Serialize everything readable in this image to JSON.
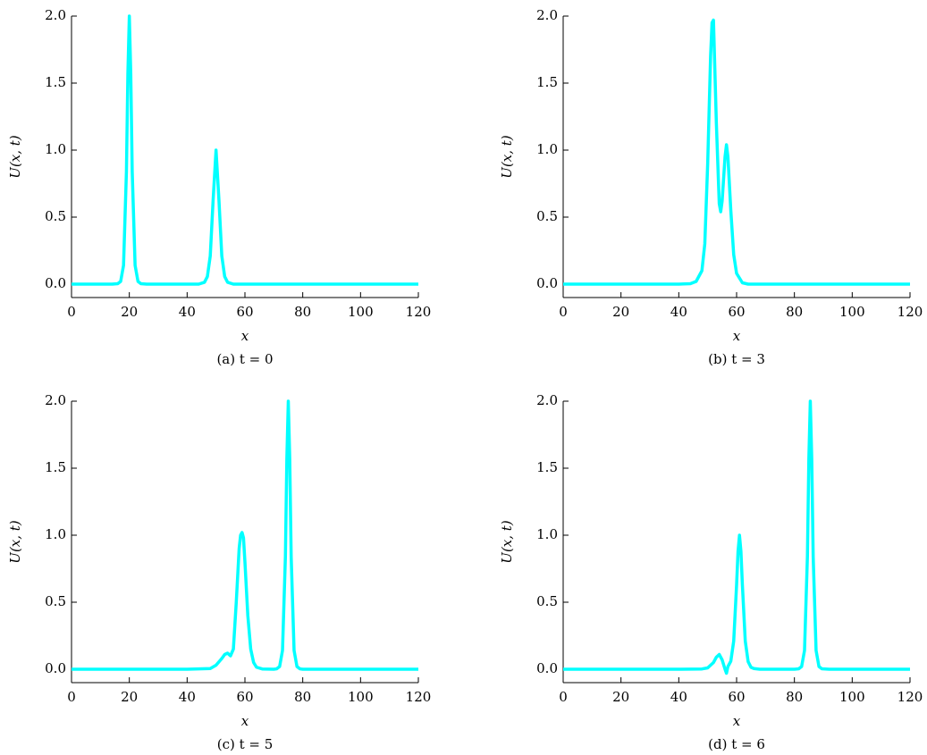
{
  "chart_data": [
    {
      "type": "line",
      "caption": "(a) t = 0",
      "xlabel": "x",
      "ylabel": "U(x, t)",
      "color": "#00ffff",
      "x": [
        0,
        10,
        14,
        16,
        17,
        18,
        19,
        19.5,
        20,
        20.5,
        21,
        22,
        23,
        24,
        26,
        30,
        40,
        44,
        46,
        47,
        48,
        49,
        50,
        51,
        52,
        53,
        54,
        56,
        60,
        80,
        100,
        120
      ],
      "values": [
        0,
        0,
        0,
        0.003,
        0.02,
        0.14,
        0.84,
        1.57,
        2,
        1.57,
        0.84,
        0.14,
        0.02,
        0.003,
        0,
        0,
        0,
        0,
        0.014,
        0.056,
        0.21,
        0.63,
        1,
        0.63,
        0.21,
        0.056,
        0.014,
        0,
        0,
        0,
        0,
        0
      ],
      "xlim": [
        0,
        120
      ],
      "xticks": [
        0,
        20,
        40,
        60,
        80,
        100,
        120
      ],
      "ylim": [
        -0.1,
        2.0
      ],
      "yticks": [
        {
          "value": 0,
          "label": "0.0"
        },
        0.5,
        {
          "value": 1,
          "label": "1.0"
        },
        1.5,
        {
          "value": 2,
          "label": "2.0"
        }
      ]
    },
    {
      "type": "line",
      "caption": "(b) t = 3",
      "xlabel": "x",
      "ylabel": "U(x, t)",
      "color": "#00ffff",
      "x": [
        0,
        20,
        40,
        44,
        46,
        48,
        49,
        50,
        51,
        51.5,
        52,
        53,
        54,
        54.5,
        55,
        56,
        56.5,
        57,
        58,
        59,
        60,
        62,
        64,
        80,
        100,
        120
      ],
      "values": [
        0,
        0,
        0,
        0.003,
        0.02,
        0.1,
        0.3,
        0.9,
        1.7,
        1.95,
        1.97,
        1.2,
        0.6,
        0.54,
        0.62,
        0.95,
        1.04,
        0.95,
        0.55,
        0.22,
        0.08,
        0.01,
        0,
        0,
        0,
        0
      ],
      "xlim": [
        0,
        120
      ],
      "xticks": [
        0,
        20,
        40,
        60,
        80,
        100,
        120
      ],
      "ylim": [
        -0.1,
        2.0
      ],
      "yticks": [
        {
          "value": 0,
          "label": "0.0"
        },
        0.5,
        {
          "value": 1,
          "label": "1.0"
        },
        1.5,
        {
          "value": 2,
          "label": "2.0"
        }
      ]
    },
    {
      "type": "line",
      "caption": "(c) t = 5",
      "xlabel": "x",
      "ylabel": "U(x, t)",
      "color": "#00ffff",
      "x": [
        0,
        20,
        40,
        48,
        50,
        52,
        53,
        54,
        55,
        56,
        57,
        58,
        58.5,
        59,
        59.5,
        60,
        61,
        62,
        63,
        64,
        66,
        70,
        71,
        72,
        73,
        74,
        74.5,
        75,
        75.5,
        76,
        77,
        78,
        79,
        80,
        84,
        100,
        120
      ],
      "values": [
        0,
        0,
        0,
        0.005,
        0.03,
        0.08,
        0.11,
        0.12,
        0.1,
        0.15,
        0.5,
        0.9,
        1.0,
        1.02,
        0.98,
        0.8,
        0.4,
        0.15,
        0.05,
        0.015,
        0.002,
        0,
        0.003,
        0.02,
        0.14,
        0.84,
        1.57,
        2,
        1.57,
        0.84,
        0.14,
        0.02,
        0.003,
        0,
        0,
        0,
        0
      ],
      "xlim": [
        0,
        120
      ],
      "xticks": [
        0,
        20,
        40,
        60,
        80,
        100,
        120
      ],
      "ylim": [
        -0.1,
        2.0
      ],
      "yticks": [
        {
          "value": 0,
          "label": "0.0"
        },
        0.5,
        {
          "value": 1,
          "label": "1.0"
        },
        1.5,
        {
          "value": 2,
          "label": "2.0"
        }
      ]
    },
    {
      "type": "line",
      "caption": "(d) t = 6",
      "xlabel": "x",
      "ylabel": "U(x, t)",
      "color": "#00ffff",
      "x": [
        0,
        20,
        40,
        48,
        50,
        52,
        53,
        54,
        55,
        56,
        56.5,
        57,
        58,
        59,
        60,
        60.5,
        61,
        61.5,
        62,
        63,
        64,
        65,
        66,
        68,
        72,
        80,
        81.5,
        82.5,
        83.5,
        84.5,
        85,
        85.5,
        86,
        86.5,
        87.5,
        88.5,
        89.5,
        92,
        100,
        120
      ],
      "values": [
        0,
        0,
        0,
        0.002,
        0.01,
        0.05,
        0.09,
        0.11,
        0.07,
        0,
        -0.03,
        0.02,
        0.06,
        0.21,
        0.63,
        0.88,
        1,
        0.88,
        0.63,
        0.21,
        0.056,
        0.014,
        0.005,
        0,
        0,
        0,
        0.003,
        0.02,
        0.14,
        0.84,
        1.57,
        2,
        1.57,
        0.84,
        0.14,
        0.02,
        0.003,
        0,
        0,
        0
      ],
      "xlim": [
        0,
        120
      ],
      "xticks": [
        0,
        20,
        40,
        60,
        80,
        100,
        120
      ],
      "ylim": [
        -0.1,
        2.0
      ],
      "yticks": [
        {
          "value": 0,
          "label": "0.0"
        },
        0.5,
        {
          "value": 1,
          "label": "1.0"
        },
        1.5,
        {
          "value": 2,
          "label": "2.0"
        }
      ]
    }
  ]
}
